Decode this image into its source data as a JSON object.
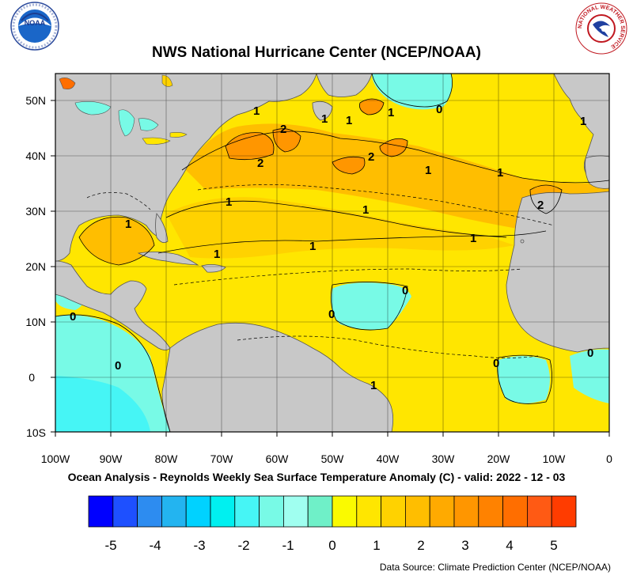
{
  "header": {
    "title": "NWS National Hurricane Center (NCEP/NOAA)"
  },
  "logos": {
    "left": "noaa-logo",
    "right": "national-weather-service-logo",
    "right_text": "NATIONAL WEATHER SERVICE"
  },
  "map": {
    "lon_ticks": [
      "100W",
      "90W",
      "80W",
      "70W",
      "60W",
      "50W",
      "40W",
      "30W",
      "20W",
      "10W",
      "0"
    ],
    "lat_ticks": [
      "50N",
      "40N",
      "30N",
      "20N",
      "10N",
      "0",
      "10S"
    ],
    "land_color": "#c8c8c8",
    "contour_labels": [
      "1",
      "1",
      "1",
      "1",
      "1",
      "1",
      "1",
      "1",
      "1",
      "1",
      "1",
      "1",
      "2",
      "2",
      "2",
      "2",
      "0",
      "0",
      "0",
      "0",
      "0",
      "0",
      "0",
      "1",
      "1"
    ]
  },
  "caption": "Ocean Analysis - Reynolds Weekly Sea Surface Temperature Anomaly (C) - valid: 2022 - 12 - 03",
  "colorbar": {
    "labels": [
      "-5",
      "-4",
      "-3",
      "-2",
      "-1",
      "0",
      "1",
      "2",
      "3",
      "4",
      "5"
    ],
    "colors": [
      "#0000ff",
      "#1e50ff",
      "#2d8cf0",
      "#23b4f0",
      "#00d2ff",
      "#00f0f0",
      "#46f5f5",
      "#78fae6",
      "#a0fff0",
      "#6ff0c8",
      "#fafa00",
      "#ffe600",
      "#ffd200",
      "#ffbe00",
      "#ffaa00",
      "#ff9600",
      "#ff8200",
      "#ff6e00",
      "#ff5a14",
      "#ff3c00"
    ]
  },
  "source": "Data Source: Climate Prediction Center (NCEP/NOAA)"
}
